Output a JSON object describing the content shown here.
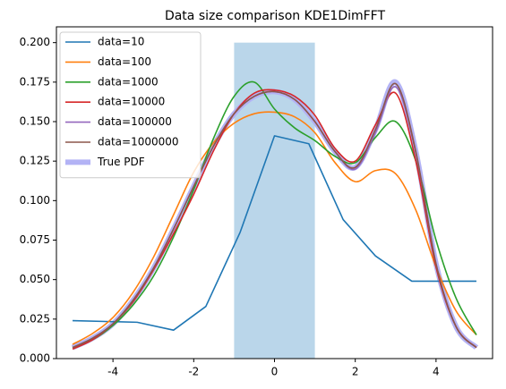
{
  "chart_data": {
    "type": "line",
    "title": "Data size comparison KDE1DimFFT",
    "xlim": [
      -5.4,
      5.4
    ],
    "ylim": [
      0,
      0.21
    ],
    "xticks": [
      -4,
      -2,
      0,
      2,
      4
    ],
    "yticks": [
      {
        "value": 0,
        "label": "0.000"
      },
      {
        "value": 0.025,
        "label": "0.025"
      },
      {
        "value": 0.05,
        "label": "0.050"
      },
      {
        "value": 0.075,
        "label": "0.075"
      },
      {
        "value": 0.1,
        "label": "0.100"
      },
      {
        "value": 0.125,
        "label": "0.125"
      },
      {
        "value": 0.15,
        "label": "0.150"
      },
      {
        "value": 0.175,
        "label": "0.175"
      },
      {
        "value": 0.2,
        "label": "0.200"
      }
    ],
    "grid": false,
    "legend": "upper left",
    "span": {
      "x": [
        -1,
        1
      ],
      "y": [
        0,
        0.2
      ],
      "color": "#bad6ea"
    },
    "series": [
      {
        "name": "data=10",
        "color": "#1f77b4",
        "width": 1.6,
        "x": [
          -5,
          -3.4,
          -2.5,
          -1.7,
          -0.85,
          0,
          0.85,
          1.7,
          2.5,
          3.4,
          4.2,
          5
        ],
        "values": [
          0.024,
          0.023,
          0.018,
          0.033,
          0.08,
          0.141,
          0.136,
          0.088,
          0.065,
          0.049,
          0.049,
          0.049
        ]
      },
      {
        "name": "data=100",
        "color": "#ff7f0e",
        "width": 1.6,
        "x": [
          -5,
          -4.5,
          -4,
          -3.5,
          -3,
          -2.5,
          -2,
          -1.5,
          -1,
          -0.5,
          0,
          0.5,
          1,
          1.5,
          2,
          2.5,
          3,
          3.5,
          4,
          4.5,
          5
        ],
        "values": [
          0.009,
          0.016,
          0.026,
          0.042,
          0.064,
          0.091,
          0.118,
          0.137,
          0.149,
          0.155,
          0.156,
          0.153,
          0.143,
          0.124,
          0.112,
          0.119,
          0.117,
          0.094,
          0.058,
          0.03,
          0.015
        ]
      },
      {
        "name": "data=1000",
        "color": "#2ca02c",
        "width": 1.6,
        "x": [
          -5,
          -4.5,
          -4,
          -3.5,
          -3,
          -2.5,
          -2,
          -1.5,
          -1,
          -0.5,
          0,
          0.5,
          1,
          1.5,
          2,
          2.5,
          3,
          3.5,
          4,
          4.5,
          5
        ],
        "values": [
          0.007,
          0.012,
          0.021,
          0.034,
          0.052,
          0.077,
          0.107,
          0.14,
          0.166,
          0.175,
          0.158,
          0.146,
          0.138,
          0.128,
          0.124,
          0.14,
          0.15,
          0.125,
          0.075,
          0.038,
          0.015
        ]
      },
      {
        "name": "data=10000",
        "color": "#d62728",
        "width": 1.6,
        "x": [
          -5,
          -4.5,
          -4,
          -3.5,
          -3,
          -2.5,
          -2,
          -1.5,
          -1,
          -0.5,
          0,
          0.5,
          1,
          1.5,
          2,
          2.5,
          3,
          3.5,
          4,
          4.5,
          5
        ],
        "values": [
          0.006,
          0.012,
          0.022,
          0.036,
          0.056,
          0.079,
          0.104,
          0.132,
          0.155,
          0.168,
          0.17,
          0.166,
          0.154,
          0.133,
          0.125,
          0.148,
          0.168,
          0.125,
          0.058,
          0.02,
          0.007
        ]
      },
      {
        "name": "data=100000",
        "color": "#9467bd",
        "width": 1.6,
        "x": [
          -5,
          -4.5,
          -4,
          -3.5,
          -3,
          -2.5,
          -2,
          -1.5,
          -1,
          -0.5,
          0,
          0.5,
          1,
          1.5,
          2,
          2.5,
          3,
          3.5,
          4,
          4.5,
          5
        ],
        "values": [
          0.007,
          0.013,
          0.022,
          0.037,
          0.057,
          0.082,
          0.109,
          0.135,
          0.155,
          0.166,
          0.169,
          0.164,
          0.15,
          0.131,
          0.12,
          0.143,
          0.172,
          0.13,
          0.06,
          0.02,
          0.007
        ]
      },
      {
        "name": "data=1000000",
        "color": "#8c564b",
        "width": 1.6,
        "x": [
          -5,
          -4.5,
          -4,
          -3.5,
          -3,
          -2.5,
          -2,
          -1.5,
          -1,
          -0.5,
          0,
          0.5,
          1,
          1.5,
          2,
          2.5,
          3,
          3.5,
          4,
          4.5,
          5
        ],
        "values": [
          0.007,
          0.013,
          0.022,
          0.037,
          0.057,
          0.082,
          0.109,
          0.135,
          0.155,
          0.166,
          0.169,
          0.164,
          0.15,
          0.131,
          0.121,
          0.145,
          0.174,
          0.131,
          0.06,
          0.02,
          0.007
        ]
      },
      {
        "name": "True PDF",
        "color": "#b3b3f5",
        "width": 6,
        "x": [
          -5,
          -4.5,
          -4,
          -3.5,
          -3,
          -2.5,
          -2,
          -1.5,
          -1,
          -0.5,
          0,
          0.5,
          1,
          1.5,
          2,
          2.5,
          3,
          3.5,
          4,
          4.5,
          5
        ],
        "values": [
          0.007,
          0.013,
          0.022,
          0.037,
          0.057,
          0.082,
          0.109,
          0.135,
          0.155,
          0.166,
          0.169,
          0.164,
          0.15,
          0.131,
          0.121,
          0.145,
          0.175,
          0.131,
          0.06,
          0.02,
          0.007
        ]
      }
    ]
  }
}
